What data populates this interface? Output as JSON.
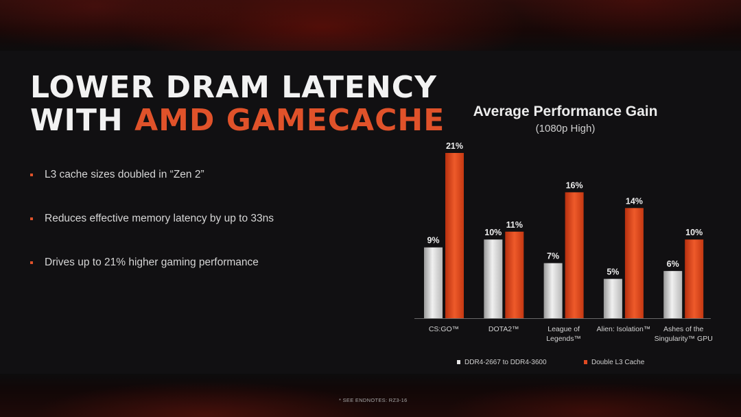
{
  "slide": {
    "title_line1": "LOWER DRAM LATENCY",
    "title_line2_prefix": "WITH ",
    "title_line2_accent": "AMD GAMECACHE",
    "bullets": [
      "L3 cache sizes doubled in “Zen 2”",
      "Reduces effective memory latency by up to 33ns",
      "Drives up to 21% higher gaming performance"
    ],
    "footnote": "* SEE ENDNOTES: RZ3-16"
  },
  "colors": {
    "accent": "#e0522a",
    "bar_gray": "#d9d9d9",
    "bar_orange": "#e04a22"
  },
  "chart_data": {
    "type": "bar",
    "title": "Average Performance Gain",
    "subtitle": "(1080p High)",
    "categories": [
      [
        "CS:GO™"
      ],
      [
        "DOTA2™"
      ],
      [
        "League of",
        "Legends™"
      ],
      [
        "Alien: Isolation™"
      ],
      [
        "Ashes of the",
        "Singularity™ GPU"
      ]
    ],
    "series": [
      {
        "name": "DDR4-2667 to DDR4-3600",
        "values": [
          9,
          10,
          7,
          5,
          6
        ],
        "labels": [
          "9%",
          "10%",
          "7%",
          "5%",
          "6%"
        ]
      },
      {
        "name": "Double L3 Cache",
        "values": [
          21,
          11,
          16,
          14,
          10
        ],
        "labels": [
          "21%",
          "11%",
          "16%",
          "14%",
          "10%"
        ]
      }
    ],
    "ylim": [
      0,
      21
    ],
    "grid": false,
    "legend": "bottom"
  }
}
